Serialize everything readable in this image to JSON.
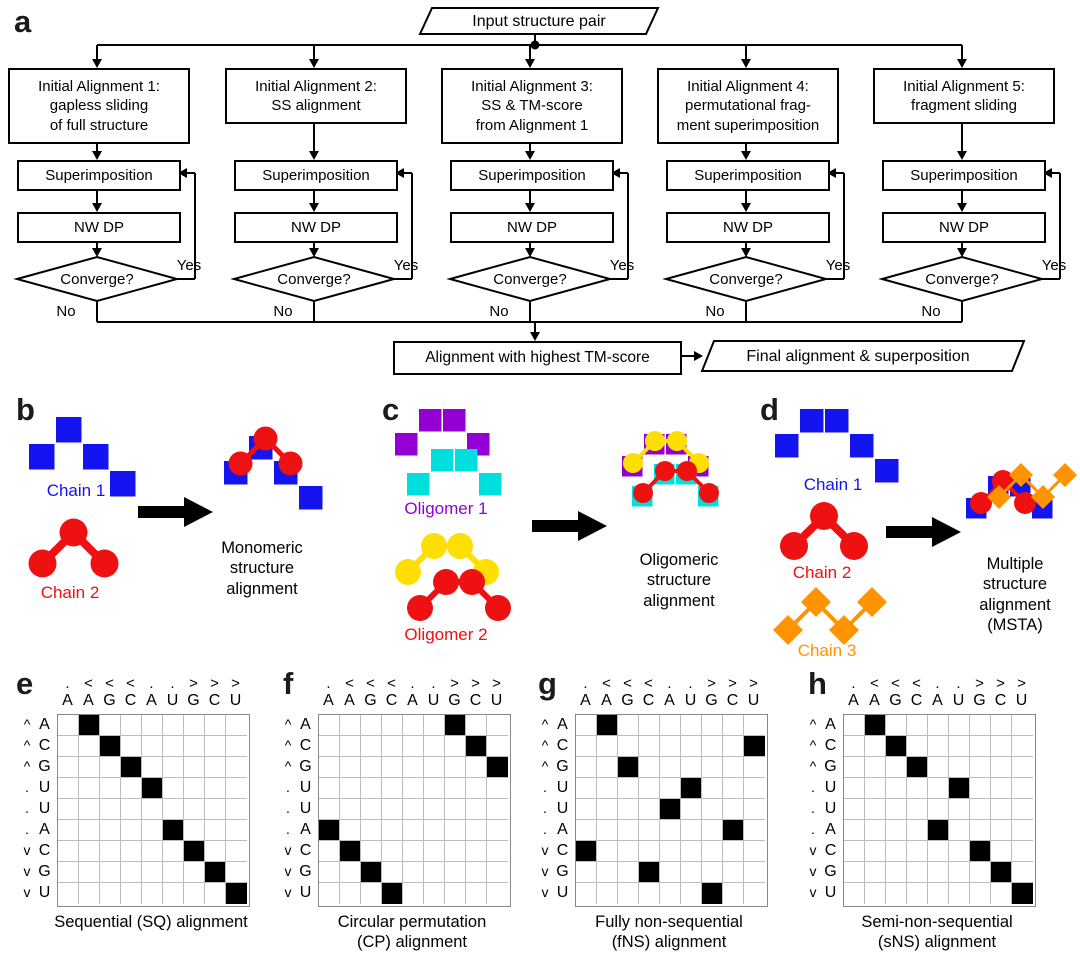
{
  "colors": {
    "blue": "#1414f0",
    "red": "#ee1111",
    "purple": "#9400d3",
    "cyan": "#00dede",
    "yellow": "#ffdf00",
    "orange": "#ff9400",
    "line": "#000000",
    "gridline": "#bcbcbc"
  },
  "flowchart": {
    "input_label": "Input structure pair",
    "branches": [
      {
        "title": "Initial Alignment 1:\ngapless sliding\nof full structure"
      },
      {
        "title": "Initial Alignment 2:\nSS alignment"
      },
      {
        "title": "Initial Alignment 3:\nSS & TM-score\nfrom Alignment 1"
      },
      {
        "title": "Initial Alignment 4:\npermutational frag-\nment superimposition"
      },
      {
        "title": "Initial Alignment 5:\nfragment sliding"
      }
    ],
    "superimposition_label": "Superimposition",
    "nwdp_label": "NW DP",
    "converge_label": "Converge?",
    "yes_label": "Yes",
    "no_label": "No",
    "result_label": "Alignment with highest TM-score",
    "final_label": "Final alignment & superposition"
  },
  "panels": {
    "a": {
      "label": "a"
    },
    "b": {
      "label": "b",
      "chain1": "Chain 1",
      "chain2": "Chain 2",
      "caption": "Monomeric\nstructure\nalignment"
    },
    "c": {
      "label": "c",
      "oligomer1": "Oligomer 1",
      "oligomer2": "Oligomer 2",
      "caption": "Oligomeric\nstructure\nalignment"
    },
    "d": {
      "label": "d",
      "chain1": "Chain 1",
      "chain2": "Chain 2",
      "chain3": "Chain 3",
      "caption": "Multiple\nstructure\nalignment\n(MSTA)"
    }
  },
  "matrices": {
    "x_symbols": [
      ".",
      "<",
      "<",
      "<",
      ".",
      ".",
      ">",
      ">",
      ">"
    ],
    "x_letters": [
      "A",
      "A",
      "G",
      "C",
      "A",
      "U",
      "G",
      "C",
      "U"
    ],
    "y_symbols": [
      "^",
      "^",
      "^",
      ".",
      ".",
      ".",
      "v",
      "v",
      "v"
    ],
    "y_letters": [
      "A",
      "C",
      "G",
      "U",
      "U",
      "A",
      "C",
      "G",
      "U"
    ],
    "panels": [
      {
        "id": "e",
        "label": "e",
        "caption": "Sequential (SQ) alignment",
        "cells": [
          [
            1,
            2
          ],
          [
            2,
            3
          ],
          [
            3,
            4
          ],
          [
            4,
            5
          ],
          [
            6,
            6
          ],
          [
            7,
            7
          ],
          [
            8,
            8
          ],
          [
            9,
            9
          ]
        ]
      },
      {
        "id": "f",
        "label": "f",
        "caption": "Circular permutation\n(CP) alignment",
        "cells": [
          [
            1,
            7
          ],
          [
            2,
            8
          ],
          [
            3,
            9
          ],
          [
            6,
            1
          ],
          [
            7,
            2
          ],
          [
            8,
            3
          ],
          [
            9,
            4
          ]
        ]
      },
      {
        "id": "g",
        "label": "g",
        "caption": "Fully non-sequential\n(fNS) alignment",
        "cells": [
          [
            1,
            2
          ],
          [
            2,
            9
          ],
          [
            3,
            3
          ],
          [
            4,
            6
          ],
          [
            5,
            5
          ],
          [
            6,
            8
          ],
          [
            7,
            1
          ],
          [
            8,
            4
          ],
          [
            9,
            7
          ]
        ]
      },
      {
        "id": "h",
        "label": "h",
        "caption": "Semi-non-sequential\n(sNS) alignment",
        "cells": [
          [
            1,
            2
          ],
          [
            2,
            3
          ],
          [
            3,
            4
          ],
          [
            4,
            6
          ],
          [
            6,
            5
          ],
          [
            7,
            7
          ],
          [
            8,
            8
          ],
          [
            9,
            9
          ]
        ]
      }
    ]
  }
}
